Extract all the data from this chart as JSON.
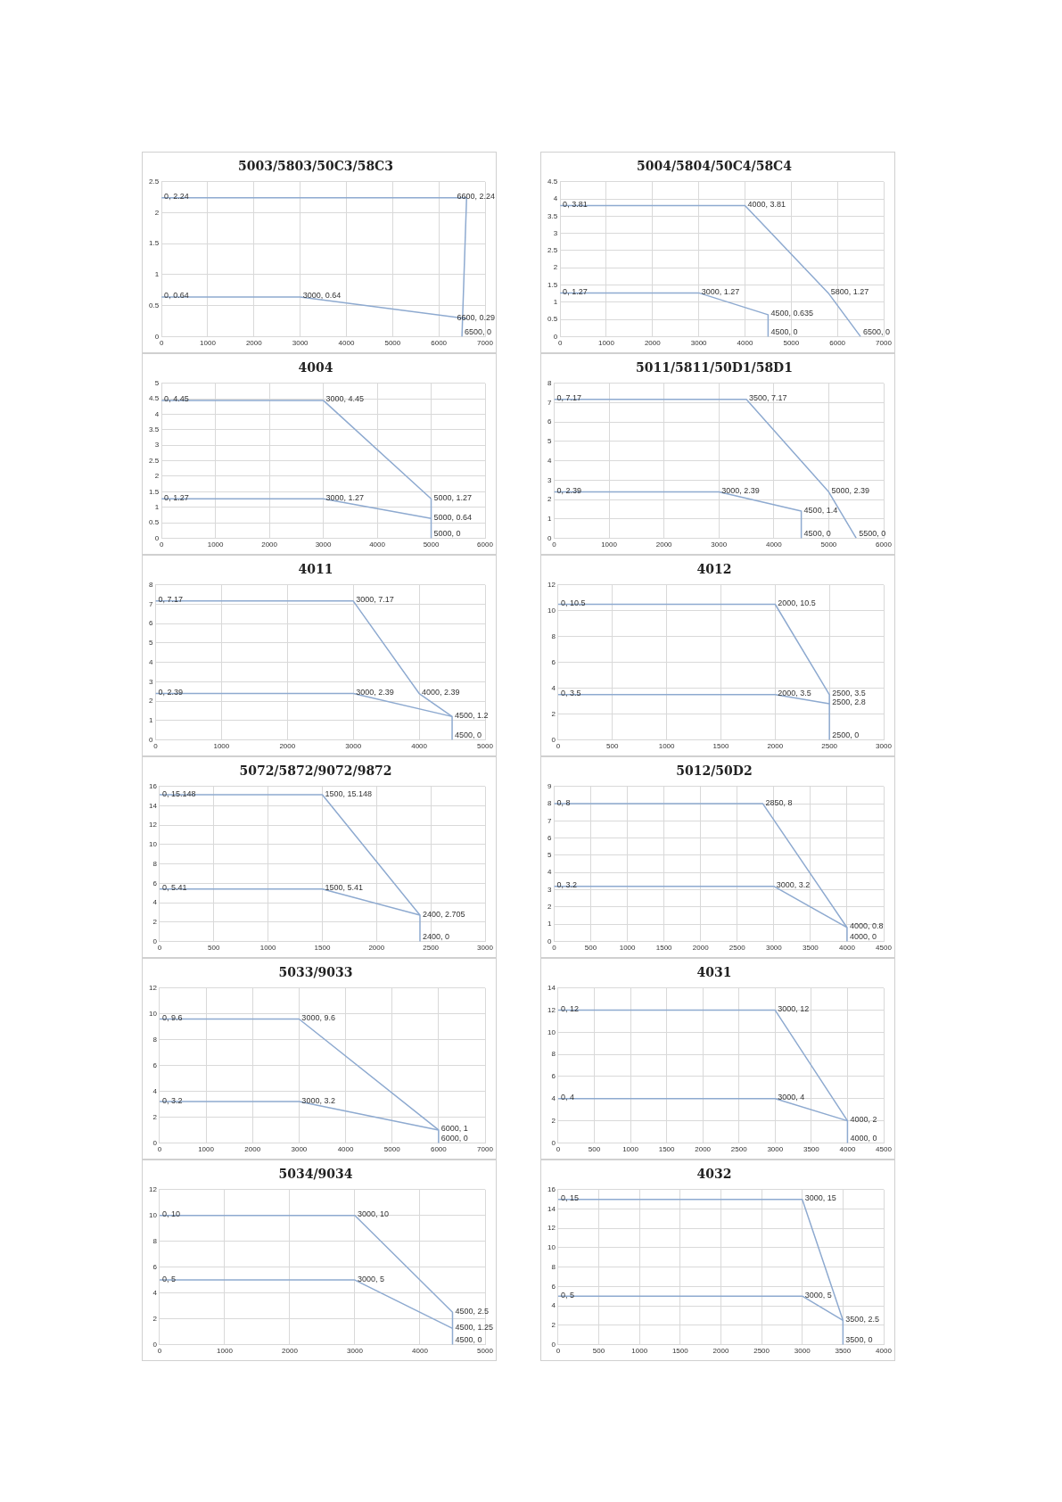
{
  "chart_data": [
    {
      "type": "line",
      "title": "5003/5803/50C3/58C3",
      "xlim": [
        0,
        7000
      ],
      "xticks": [
        0,
        1000,
        2000,
        3000,
        4000,
        5000,
        6000,
        7000
      ],
      "ylim": [
        0,
        2.5
      ],
      "yticks": [
        0,
        0.5,
        1,
        1.5,
        2,
        2.5
      ],
      "grid": true,
      "legend": false,
      "marker": "none",
      "series": [
        {
          "color": "#8eaad0",
          "x": [
            0,
            6600,
            6500
          ],
          "values": [
            2.24,
            2.24,
            0
          ],
          "value_labels": [
            "0, 2.24",
            "6600, 2.24",
            "6500, 0"
          ]
        },
        {
          "color": "#8eaad0",
          "x": [
            0,
            3000,
            6600
          ],
          "values": [
            0.64,
            0.64,
            0.29
          ],
          "value_labels": [
            "0, 0.64",
            "3000, 0.64",
            "6600, 0.29"
          ]
        }
      ]
    },
    {
      "type": "line",
      "title": "5004/5804/50C4/58C4",
      "xlim": [
        0,
        7000
      ],
      "xticks": [
        0,
        1000,
        2000,
        3000,
        4000,
        5000,
        6000,
        7000
      ],
      "ylim": [
        0,
        4.5
      ],
      "yticks": [
        0,
        0.5,
        1,
        1.5,
        2,
        2.5,
        3,
        3.5,
        4,
        4.5
      ],
      "grid": true,
      "legend": false,
      "marker": "none",
      "series": [
        {
          "color": "#8eaad0",
          "x": [
            0,
            4000,
            5800,
            6500
          ],
          "values": [
            3.81,
            3.81,
            1.27,
            0
          ],
          "value_labels": [
            "0, 3.81",
            "4000, 3.81",
            "5800, 1.27",
            "6500, 0"
          ]
        },
        {
          "color": "#8eaad0",
          "x": [
            0,
            3000,
            4500,
            4500
          ],
          "values": [
            1.27,
            1.27,
            0.635,
            0
          ],
          "value_labels": [
            "0, 1.27",
            "3000, 1.27",
            "4500, 0.635",
            "4500, 0"
          ]
        }
      ]
    },
    {
      "type": "line",
      "title": "4004",
      "xlim": [
        0,
        6000
      ],
      "xticks": [
        0,
        1000,
        2000,
        3000,
        4000,
        5000,
        6000
      ],
      "ylim": [
        0,
        5
      ],
      "yticks": [
        0,
        0.5,
        1,
        1.5,
        2,
        2.5,
        3,
        3.5,
        4,
        4.5,
        5
      ],
      "grid": true,
      "legend": false,
      "marker": "none",
      "series": [
        {
          "color": "#8eaad0",
          "x": [
            0,
            3000,
            5000,
            5000
          ],
          "values": [
            4.45,
            4.45,
            1.27,
            0
          ],
          "value_labels": [
            "0, 4.45",
            "3000, 4.45",
            "5000, 1.27",
            "5000, 0"
          ]
        },
        {
          "color": "#8eaad0",
          "x": [
            0,
            3000,
            5000
          ],
          "values": [
            1.27,
            1.27,
            0.64
          ],
          "value_labels": [
            "0, 1.27",
            "3000, 1.27",
            "5000, 0.64"
          ]
        }
      ]
    },
    {
      "type": "line",
      "title": "5011/5811/50D1/58D1",
      "xlim": [
        0,
        6000
      ],
      "xticks": [
        0,
        1000,
        2000,
        3000,
        4000,
        5000,
        6000
      ],
      "ylim": [
        0,
        8
      ],
      "yticks": [
        0,
        1,
        2,
        3,
        4,
        5,
        6,
        7,
        8
      ],
      "grid": true,
      "legend": false,
      "marker": "none",
      "series": [
        {
          "color": "#8eaad0",
          "x": [
            0,
            3500,
            5000,
            5500
          ],
          "values": [
            7.17,
            7.17,
            2.39,
            0
          ],
          "value_labels": [
            "0, 7.17",
            "3500, 7.17",
            "5000, 2.39",
            "5500, 0"
          ]
        },
        {
          "color": "#8eaad0",
          "x": [
            0,
            3000,
            4500,
            4500
          ],
          "values": [
            2.39,
            2.39,
            1.4,
            0
          ],
          "value_labels": [
            "0, 2.39",
            "3000, 2.39",
            "4500, 1.4",
            "4500, 0"
          ]
        }
      ]
    },
    {
      "type": "line",
      "title": "4011",
      "xlim": [
        0,
        5000
      ],
      "xticks": [
        0,
        1000,
        2000,
        3000,
        4000,
        5000
      ],
      "ylim": [
        0,
        8
      ],
      "yticks": [
        0,
        1,
        2,
        3,
        4,
        5,
        6,
        7,
        8
      ],
      "grid": true,
      "legend": false,
      "marker": "none",
      "series": [
        {
          "color": "#8eaad0",
          "x": [
            0,
            3000,
            4000,
            4500,
            4500
          ],
          "values": [
            7.17,
            7.17,
            2.39,
            1.2,
            0
          ],
          "value_labels": [
            "0, 7.17",
            "3000, 7.17",
            "4000, 2.39",
            "4500, 1.2",
            "4500, 0"
          ]
        },
        {
          "color": "#8eaad0",
          "x": [
            0,
            3000,
            4500
          ],
          "values": [
            2.39,
            2.39,
            1.2
          ],
          "value_labels": [
            "0, 2.39",
            "3000, 2.39",
            null
          ]
        }
      ]
    },
    {
      "type": "line",
      "title": "4012",
      "xlim": [
        0,
        3000
      ],
      "xticks": [
        0,
        500,
        1000,
        1500,
        2000,
        2500,
        3000
      ],
      "ylim": [
        0,
        12
      ],
      "yticks": [
        0,
        2,
        4,
        6,
        8,
        10,
        12
      ],
      "grid": true,
      "legend": false,
      "marker": "none",
      "series": [
        {
          "color": "#8eaad0",
          "x": [
            0,
            2000,
            2500,
            2500
          ],
          "values": [
            10.5,
            10.5,
            3.5,
            0
          ],
          "value_labels": [
            "0, 10.5",
            "2000, 10.5",
            "2500, 3.5",
            "2500, 0"
          ]
        },
        {
          "color": "#8eaad0",
          "x": [
            0,
            2000,
            2500
          ],
          "values": [
            3.5,
            3.5,
            2.8
          ],
          "value_labels": [
            "0, 3.5",
            "2000, 3.5",
            "2500, 2.8"
          ]
        }
      ]
    },
    {
      "type": "line",
      "title": "5072/5872/9072/9872",
      "xlim": [
        0,
        3000
      ],
      "xticks": [
        0,
        500,
        1000,
        1500,
        2000,
        2500,
        3000
      ],
      "ylim": [
        0,
        16
      ],
      "yticks": [
        0,
        2,
        4,
        6,
        8,
        10,
        12,
        14,
        16
      ],
      "grid": true,
      "legend": false,
      "marker": "none",
      "series": [
        {
          "color": "#8eaad0",
          "x": [
            0,
            1500,
            2400,
            2400
          ],
          "values": [
            15.148,
            15.148,
            2.705,
            0
          ],
          "value_labels": [
            "0, 15.148",
            "1500, 15.148",
            "2400, 2.705",
            "2400, 0"
          ]
        },
        {
          "color": "#8eaad0",
          "x": [
            0,
            1500,
            2400
          ],
          "values": [
            5.41,
            5.41,
            2.705
          ],
          "value_labels": [
            "0, 5.41",
            "1500, 5.41",
            null
          ]
        }
      ]
    },
    {
      "type": "line",
      "title": "5012/50D2",
      "xlim": [
        0,
        4500
      ],
      "xticks": [
        0,
        500,
        1000,
        1500,
        2000,
        2500,
        3000,
        3500,
        4000,
        4500
      ],
      "ylim": [
        0,
        9
      ],
      "yticks": [
        0,
        1,
        2,
        3,
        4,
        5,
        6,
        7,
        8,
        9
      ],
      "grid": true,
      "legend": false,
      "marker": "none",
      "series": [
        {
          "color": "#8eaad0",
          "x": [
            0,
            2850,
            4000,
            4000
          ],
          "values": [
            8,
            8,
            0.8,
            0
          ],
          "value_labels": [
            "0, 8",
            "2850, 8",
            "4000, 0.8",
            "4000, 0"
          ]
        },
        {
          "color": "#8eaad0",
          "x": [
            0,
            3000,
            4000
          ],
          "values": [
            3.2,
            3.2,
            0.8
          ],
          "value_labels": [
            "0, 3.2",
            "3000, 3.2",
            null
          ]
        }
      ]
    },
    {
      "type": "line",
      "title": "5033/9033",
      "xlim": [
        0,
        7000
      ],
      "xticks": [
        0,
        1000,
        2000,
        3000,
        4000,
        5000,
        6000,
        7000
      ],
      "ylim": [
        0,
        12
      ],
      "yticks": [
        0,
        2,
        4,
        6,
        8,
        10,
        12
      ],
      "grid": true,
      "legend": false,
      "marker": "none",
      "series": [
        {
          "color": "#8eaad0",
          "x": [
            0,
            3000,
            6000,
            6000
          ],
          "values": [
            9.6,
            9.6,
            1,
            0
          ],
          "value_labels": [
            "0, 9.6",
            "3000, 9.6",
            "6000, 1",
            "6000, 0"
          ]
        },
        {
          "color": "#8eaad0",
          "x": [
            0,
            3000,
            6000
          ],
          "values": [
            3.2,
            3.2,
            1
          ],
          "value_labels": [
            "0, 3.2",
            "3000, 3.2",
            null
          ]
        }
      ]
    },
    {
      "type": "line",
      "title": "4031",
      "xlim": [
        0,
        4500
      ],
      "xticks": [
        0,
        500,
        1000,
        1500,
        2000,
        2500,
        3000,
        3500,
        4000,
        4500
      ],
      "ylim": [
        0,
        14
      ],
      "yticks": [
        0,
        2,
        4,
        6,
        8,
        10,
        12,
        14
      ],
      "grid": true,
      "legend": false,
      "marker": "none",
      "series": [
        {
          "color": "#8eaad0",
          "x": [
            0,
            3000,
            4000,
            4000
          ],
          "values": [
            12,
            12,
            2,
            0
          ],
          "value_labels": [
            "0, 12",
            "3000, 12",
            "4000, 2",
            "4000, 0"
          ]
        },
        {
          "color": "#8eaad0",
          "x": [
            0,
            3000,
            4000
          ],
          "values": [
            4,
            4,
            2
          ],
          "value_labels": [
            "0, 4",
            "3000, 4",
            null
          ]
        }
      ]
    },
    {
      "type": "line",
      "title": "5034/9034",
      "xlim": [
        0,
        5000
      ],
      "xticks": [
        0,
        1000,
        2000,
        3000,
        4000,
        5000
      ],
      "ylim": [
        0,
        12
      ],
      "yticks": [
        0,
        2,
        4,
        6,
        8,
        10,
        12
      ],
      "grid": true,
      "legend": false,
      "marker": "none",
      "series": [
        {
          "color": "#8eaad0",
          "x": [
            0,
            3000,
            4500,
            4500
          ],
          "values": [
            10,
            10,
            2.5,
            0
          ],
          "value_labels": [
            "0, 10",
            "3000, 10",
            "4500, 2.5",
            "4500, 0"
          ]
        },
        {
          "color": "#8eaad0",
          "x": [
            0,
            3000,
            4500
          ],
          "values": [
            5,
            5,
            1.25
          ],
          "value_labels": [
            "0, 5",
            "3000, 5",
            "4500, 1.25"
          ]
        }
      ]
    },
    {
      "type": "line",
      "title": "4032",
      "xlim": [
        0,
        4000
      ],
      "xticks": [
        0,
        500,
        1000,
        1500,
        2000,
        2500,
        3000,
        3500,
        4000
      ],
      "ylim": [
        0,
        16
      ],
      "yticks": [
        0,
        2,
        4,
        6,
        8,
        10,
        12,
        14,
        16
      ],
      "grid": true,
      "legend": false,
      "marker": "none",
      "series": [
        {
          "color": "#8eaad0",
          "x": [
            0,
            3000,
            3500,
            3500
          ],
          "values": [
            15,
            15,
            2.5,
            0
          ],
          "value_labels": [
            "0, 15",
            "3000, 15",
            "3500, 2.5",
            "3500, 0"
          ]
        },
        {
          "color": "#8eaad0",
          "x": [
            0,
            3000,
            3500
          ],
          "values": [
            5,
            5,
            2.5
          ],
          "value_labels": [
            "0, 5",
            "3000, 5",
            null
          ]
        }
      ]
    }
  ]
}
